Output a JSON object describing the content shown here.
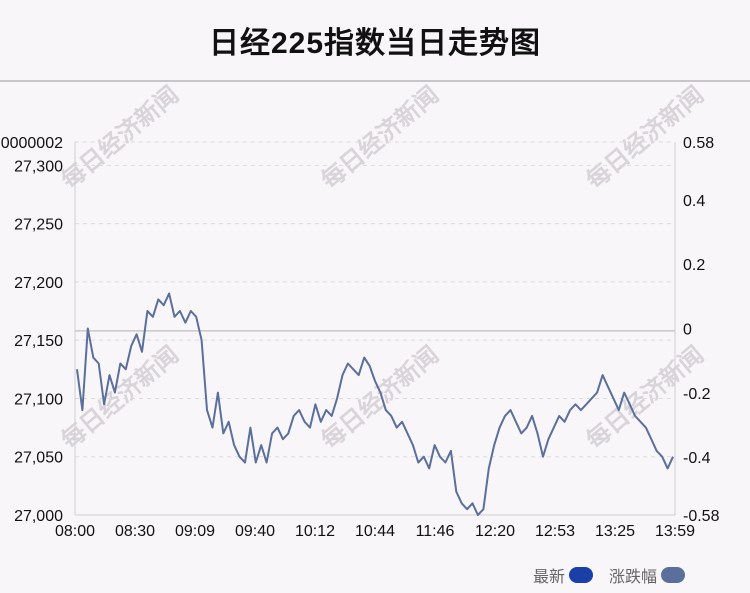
{
  "title": "日经225指数当日走势图",
  "watermark": "每日经济新闻",
  "legend": [
    {
      "label": "最新",
      "color": "#1a3fa8"
    },
    {
      "label": "涨跌幅",
      "color": "#5a6f9c"
    }
  ],
  "colors": {
    "line": "#5a6f9c",
    "grid": "#dcdcdc",
    "zero": "#c9c9c9"
  },
  "chart_data": {
    "type": "line",
    "x_ticks": [
      "08:00",
      "08:30",
      "09:09",
      "09:40",
      "10:12",
      "10:44",
      "11:46",
      "12:20",
      "12:53",
      "13:25",
      "13:59"
    ],
    "y_left_ticks": [
      "27,000",
      "27,050",
      "27,100",
      "27,150",
      "27,200",
      "27,250",
      "27,300",
      "0000002"
    ],
    "y_left_range": [
      27000,
      27320
    ],
    "y_right_ticks": [
      "-0.58",
      "-0.4",
      "-0.2",
      "0",
      "0.2",
      "0.4",
      "0.58"
    ],
    "y_right_range": [
      -0.58,
      0.58
    ],
    "zero_line": 27158,
    "series": [
      {
        "values": [
          27125,
          27090,
          27160,
          27135,
          27130,
          27095,
          27120,
          27105,
          27130,
          27125,
          27145,
          27155,
          27140,
          27175,
          27170,
          27185,
          27180,
          27190,
          27170,
          27175,
          27165,
          27175,
          27170,
          27150,
          27090,
          27075,
          27105,
          27070,
          27080,
          27060,
          27050,
          27045,
          27075,
          27045,
          27060,
          27045,
          27070,
          27075,
          27065,
          27070,
          27085,
          27090,
          27080,
          27075,
          27095,
          27080,
          27090,
          27085,
          27100,
          27120,
          27130,
          27125,
          27120,
          27135,
          27128,
          27115,
          27105,
          27090,
          27085,
          27075,
          27080,
          27070,
          27060,
          27045,
          27050,
          27040,
          27060,
          27050,
          27045,
          27055,
          27020,
          27010,
          27005,
          27010,
          27000,
          27005,
          27040,
          27060,
          27075,
          27085,
          27090,
          27080,
          27070,
          27075,
          27085,
          27070,
          27050,
          27065,
          27075,
          27085,
          27080,
          27090,
          27095,
          27090,
          27095,
          27100,
          27105,
          27120,
          27110,
          27100,
          27090,
          27105,
          27095,
          27085,
          27080,
          27075,
          27065,
          27055,
          27050,
          27040,
          27050
        ]
      }
    ]
  }
}
